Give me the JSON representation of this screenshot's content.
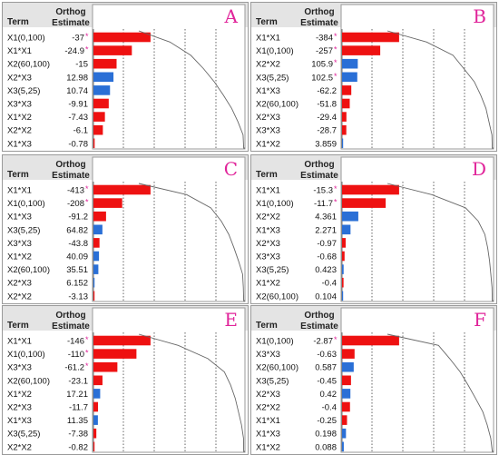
{
  "header": {
    "term_label": "Term",
    "estimate_label_line1": "Orthog",
    "estimate_label_line2": "Estimate"
  },
  "colors": {
    "positive": "#2a6fd6",
    "negative": "#ee1111",
    "star": "#e0249a",
    "letter": "#e0249a",
    "curve": "#666666",
    "header_bg": "#e4e4e4",
    "border": "#9a9a9a"
  },
  "chart_data": [
    {
      "type": "bar",
      "letter": "A",
      "rows": [
        {
          "term": "X1(0,100)",
          "estimate": -37,
          "label": "-37",
          "significant": true
        },
        {
          "term": "X1*X1",
          "estimate": -24.9,
          "label": "-24.9",
          "significant": true
        },
        {
          "term": "X2(60,100)",
          "estimate": -15,
          "label": "-15",
          "significant": false
        },
        {
          "term": "X2*X3",
          "estimate": 12.98,
          "label": "12.98",
          "significant": false
        },
        {
          "term": "X3(5,25)",
          "estimate": 10.74,
          "label": "10.74",
          "significant": false
        },
        {
          "term": "X3*X3",
          "estimate": -9.91,
          "label": "-9.91",
          "significant": false
        },
        {
          "term": "X1*X2",
          "estimate": -7.43,
          "label": "-7.43",
          "significant": false
        },
        {
          "term": "X2*X2",
          "estimate": -6.1,
          "label": "-6.1",
          "significant": false
        },
        {
          "term": "X1*X3",
          "estimate": -0.78,
          "label": "-0.78",
          "significant": false
        }
      ]
    },
    {
      "type": "bar",
      "letter": "B",
      "rows": [
        {
          "term": "X1*X1",
          "estimate": -384,
          "label": "-384",
          "significant": true
        },
        {
          "term": "X1(0,100)",
          "estimate": -257,
          "label": "-257",
          "significant": true
        },
        {
          "term": "X2*X2",
          "estimate": 105.9,
          "label": "105.9",
          "significant": true
        },
        {
          "term": "X3(5,25)",
          "estimate": 102.5,
          "label": "102.5",
          "significant": true
        },
        {
          "term": "X1*X3",
          "estimate": -62.2,
          "label": "-62.2",
          "significant": false
        },
        {
          "term": "X2(60,100)",
          "estimate": -51.8,
          "label": "-51.8",
          "significant": false
        },
        {
          "term": "X2*X3",
          "estimate": -29.4,
          "label": "-29.4",
          "significant": false
        },
        {
          "term": "X3*X3",
          "estimate": -28.7,
          "label": "-28.7",
          "significant": false
        },
        {
          "term": "X1*X2",
          "estimate": 3.859,
          "label": "3.859",
          "significant": false
        }
      ]
    },
    {
      "type": "bar",
      "letter": "C",
      "rows": [
        {
          "term": "X1*X1",
          "estimate": -413,
          "label": "-413",
          "significant": true
        },
        {
          "term": "X1(0,100)",
          "estimate": -208,
          "label": "-208",
          "significant": true
        },
        {
          "term": "X1*X3",
          "estimate": -91.2,
          "label": "-91.2",
          "significant": false
        },
        {
          "term": "X3(5,25)",
          "estimate": 64.82,
          "label": "64.82",
          "significant": false
        },
        {
          "term": "X3*X3",
          "estimate": -43.8,
          "label": "-43.8",
          "significant": false
        },
        {
          "term": "X1*X2",
          "estimate": 40.09,
          "label": "40.09",
          "significant": false
        },
        {
          "term": "X2(60,100)",
          "estimate": 35.51,
          "label": "35.51",
          "significant": false
        },
        {
          "term": "X2*X3",
          "estimate": 6.152,
          "label": "6.152",
          "significant": false
        },
        {
          "term": "X2*X2",
          "estimate": -3.13,
          "label": "-3.13",
          "significant": false
        }
      ]
    },
    {
      "type": "bar",
      "letter": "D",
      "rows": [
        {
          "term": "X1*X1",
          "estimate": -15.3,
          "label": "-15.3",
          "significant": true
        },
        {
          "term": "X1(0,100)",
          "estimate": -11.7,
          "label": "-11.7",
          "significant": true
        },
        {
          "term": "X2*X2",
          "estimate": 4.361,
          "label": "4.361",
          "significant": false
        },
        {
          "term": "X1*X3",
          "estimate": 2.271,
          "label": "2.271",
          "significant": false
        },
        {
          "term": "X2*X3",
          "estimate": -0.97,
          "label": "-0.97",
          "significant": false
        },
        {
          "term": "X3*X3",
          "estimate": -0.68,
          "label": "-0.68",
          "significant": false
        },
        {
          "term": "X3(5,25)",
          "estimate": 0.423,
          "label": "0.423",
          "significant": false
        },
        {
          "term": "X1*X2",
          "estimate": -0.4,
          "label": "-0.4",
          "significant": false
        },
        {
          "term": "X2(60,100)",
          "estimate": 0.104,
          "label": "0.104",
          "significant": false
        }
      ]
    },
    {
      "type": "bar",
      "letter": "E",
      "rows": [
        {
          "term": "X1*X1",
          "estimate": -146,
          "label": "-146",
          "significant": true
        },
        {
          "term": "X1(0,100)",
          "estimate": -110,
          "label": "-110",
          "significant": true
        },
        {
          "term": "X3*X3",
          "estimate": -61.2,
          "label": "-61.2",
          "significant": true
        },
        {
          "term": "X2(60,100)",
          "estimate": -23.1,
          "label": "-23.1",
          "significant": false
        },
        {
          "term": "X1*X2",
          "estimate": 17.21,
          "label": "17.21",
          "significant": false
        },
        {
          "term": "X2*X3",
          "estimate": -11.7,
          "label": "-11.7",
          "significant": false
        },
        {
          "term": "X1*X3",
          "estimate": 11.35,
          "label": "11.35",
          "significant": false
        },
        {
          "term": "X3(5,25)",
          "estimate": -7.38,
          "label": "-7.38",
          "significant": false
        },
        {
          "term": "X2*X2",
          "estimate": -0.82,
          "label": "-0.82",
          "significant": false
        }
      ]
    },
    {
      "type": "bar",
      "letter": "F",
      "rows": [
        {
          "term": "X1(0,100)",
          "estimate": -2.87,
          "label": "-2.87",
          "significant": true
        },
        {
          "term": "X3*X3",
          "estimate": -0.63,
          "label": "-0.63",
          "significant": false
        },
        {
          "term": "X2(60,100)",
          "estimate": 0.587,
          "label": "0.587",
          "significant": false
        },
        {
          "term": "X3(5,25)",
          "estimate": -0.45,
          "label": "-0.45",
          "significant": false
        },
        {
          "term": "X2*X3",
          "estimate": 0.42,
          "label": "0.42",
          "significant": false
        },
        {
          "term": "X2*X2",
          "estimate": -0.4,
          "label": "-0.4",
          "significant": false
        },
        {
          "term": "X1*X1",
          "estimate": -0.25,
          "label": "-0.25",
          "significant": false
        },
        {
          "term": "X1*X3",
          "estimate": 0.198,
          "label": "0.198",
          "significant": false
        },
        {
          "term": "X1*X2",
          "estimate": 0.088,
          "label": "0.088",
          "significant": false
        }
      ]
    }
  ]
}
